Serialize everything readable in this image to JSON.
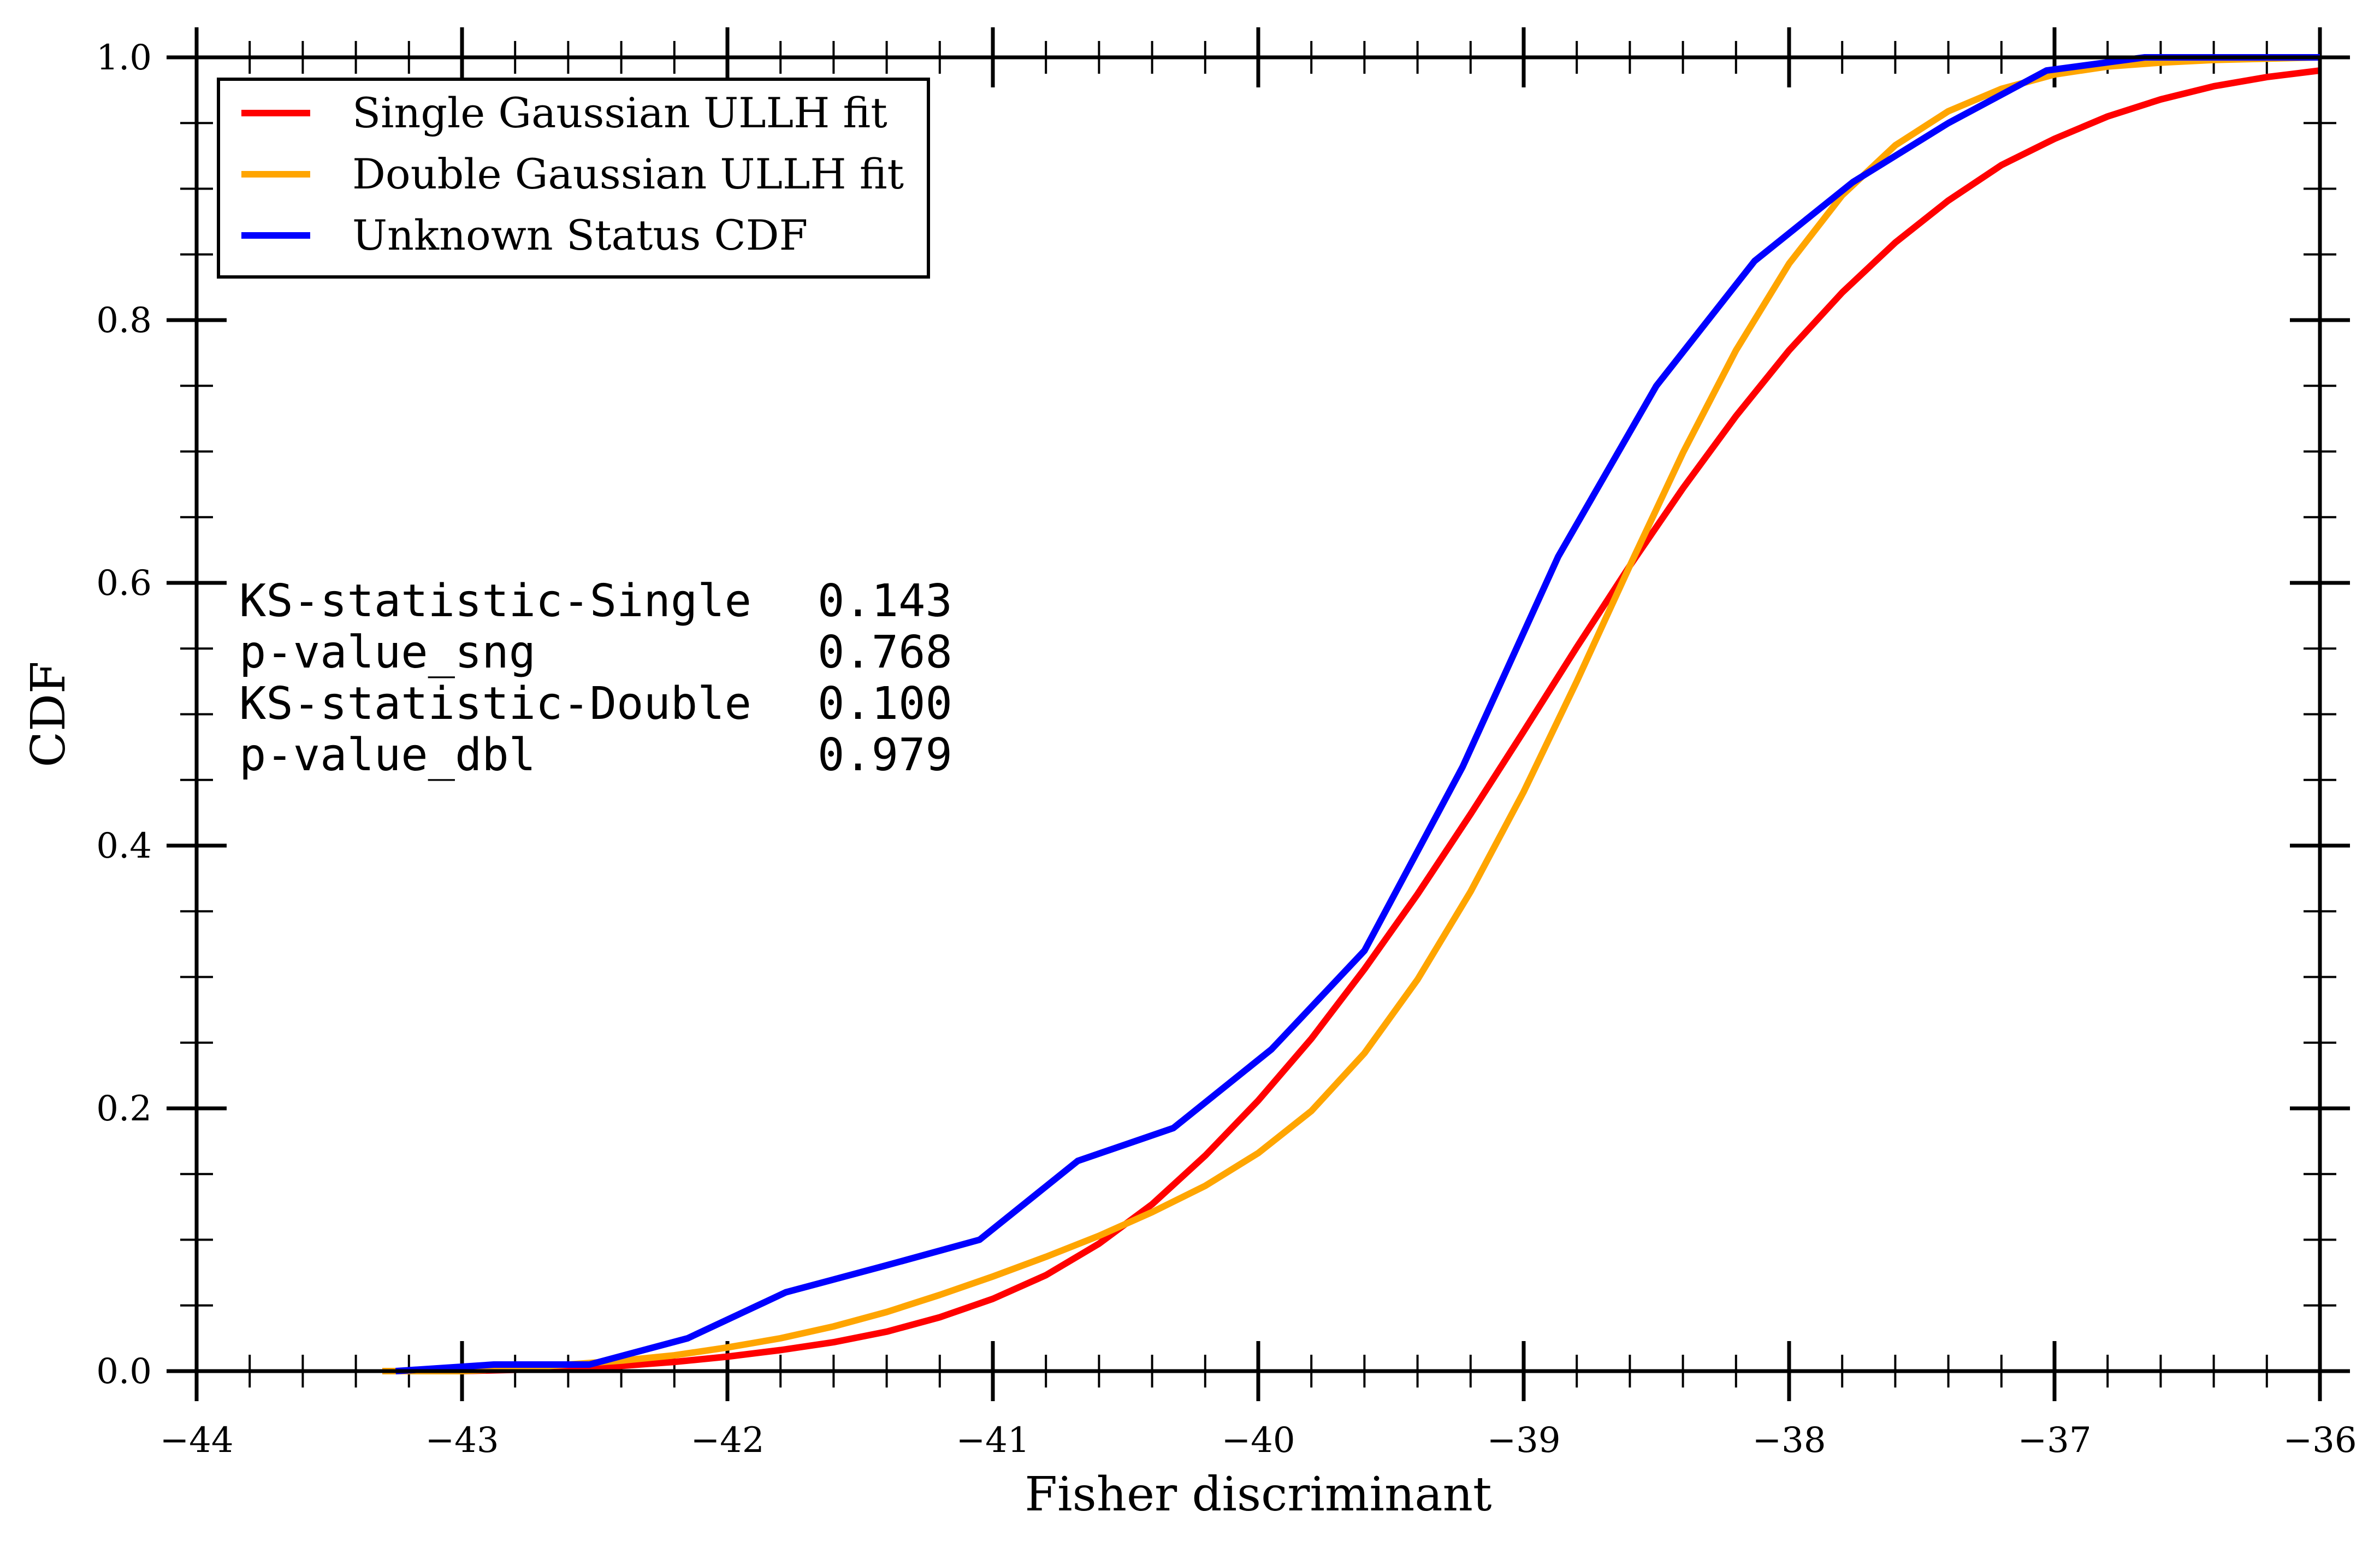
{
  "chart_data": {
    "type": "line",
    "xlabel": "Fisher discriminant",
    "ylabel": "CDF",
    "xlim": [
      -44,
      -36
    ],
    "ylim": [
      0.0,
      1.0
    ],
    "x_ticks": [
      -44,
      -43,
      -42,
      -41,
      -40,
      -39,
      -38,
      -37,
      -36
    ],
    "x_tick_labels": [
      "−44",
      "−43",
      "−42",
      "−41",
      "−40",
      "−39",
      "−38",
      "−37",
      "−36"
    ],
    "y_ticks": [
      0.0,
      0.2,
      0.4,
      0.6,
      0.8,
      1.0
    ],
    "y_tick_labels": [
      "0.0",
      "0.2",
      "0.4",
      "0.6",
      "0.8",
      "1.0"
    ],
    "grid": false,
    "legend_position": "top-left",
    "series": [
      {
        "name": "Single Gaussian ULLH fit",
        "color": "#ff0000",
        "style": "smooth",
        "x": [
          -43.3,
          -43.0,
          -42.8,
          -42.6,
          -42.4,
          -42.2,
          -42.0,
          -41.8,
          -41.6,
          -41.4,
          -41.2,
          -41.0,
          -40.8,
          -40.6,
          -40.4,
          -40.2,
          -40.0,
          -39.8,
          -39.6,
          -39.4,
          -39.2,
          -39.0,
          -38.8,
          -38.6,
          -38.4,
          -38.2,
          -38.0,
          -37.8,
          -37.6,
          -37.4,
          -37.2,
          -37.0,
          -36.8,
          -36.6,
          -36.4,
          -36.2,
          -36.0
        ],
        "y": [
          0.0,
          0.0,
          0.001,
          0.002,
          0.004,
          0.007,
          0.011,
          0.016,
          0.022,
          0.03,
          0.041,
          0.055,
          0.073,
          0.097,
          0.127,
          0.164,
          0.206,
          0.253,
          0.306,
          0.363,
          0.424,
          0.487,
          0.551,
          0.613,
          0.672,
          0.727,
          0.777,
          0.821,
          0.859,
          0.891,
          0.918,
          0.938,
          0.955,
          0.968,
          0.978,
          0.985,
          0.99
        ]
      },
      {
        "name": "Double Gaussian ULLH fit",
        "color": "#ffa500",
        "style": "smooth",
        "x": [
          -43.3,
          -43.0,
          -42.8,
          -42.6,
          -42.4,
          -42.2,
          -42.0,
          -41.8,
          -41.6,
          -41.4,
          -41.2,
          -41.0,
          -40.8,
          -40.6,
          -40.4,
          -40.2,
          -40.0,
          -39.8,
          -39.6,
          -39.4,
          -39.2,
          -39.0,
          -38.8,
          -38.6,
          -38.4,
          -38.2,
          -38.0,
          -37.8,
          -37.6,
          -37.4,
          -37.2,
          -37.0,
          -36.8,
          -36.6,
          -36.4,
          -36.2,
          -36.0
        ],
        "y": [
          0.0,
          0.0,
          0.002,
          0.005,
          0.008,
          0.012,
          0.018,
          0.025,
          0.034,
          0.045,
          0.058,
          0.072,
          0.087,
          0.103,
          0.121,
          0.141,
          0.166,
          0.198,
          0.242,
          0.298,
          0.365,
          0.441,
          0.525,
          0.613,
          0.699,
          0.777,
          0.843,
          0.895,
          0.933,
          0.959,
          0.976,
          0.987,
          0.993,
          0.996,
          0.998,
          0.999,
          1.0
        ]
      },
      {
        "name": "Unknown Status CDF",
        "color": "#0000ff",
        "style": "linear",
        "x": [
          -43.25,
          -42.88,
          -42.52,
          -42.15,
          -41.78,
          -41.41,
          -41.05,
          -40.68,
          -40.32,
          -39.95,
          -39.6,
          -39.23,
          -38.87,
          -38.5,
          -38.13,
          -37.76,
          -37.4,
          -37.03,
          -36.66,
          -36.3,
          -36.0
        ],
        "y": [
          0.0,
          0.005,
          0.005,
          0.025,
          0.06,
          0.08,
          0.1,
          0.16,
          0.185,
          0.245,
          0.32,
          0.46,
          0.62,
          0.75,
          0.845,
          0.905,
          0.95,
          0.99,
          1.0,
          1.0,
          1.0
        ]
      }
    ],
    "annotation": {
      "rows": [
        {
          "label": "KS-statistic-Single",
          "value": "0.143"
        },
        {
          "label": "p-value_sng",
          "value": "0.768"
        },
        {
          "label": "KS-statistic-Double",
          "value": "0.100"
        },
        {
          "label": "p-value_dbl",
          "value": "0.979"
        }
      ]
    }
  }
}
